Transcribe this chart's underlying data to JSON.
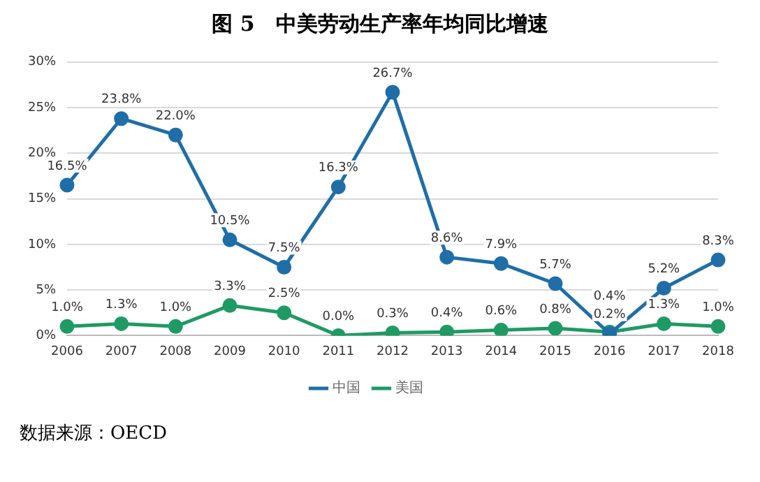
{
  "chart_data": {
    "type": "line",
    "title": "图 5　中美劳动生产率年均同比增速",
    "categories": [
      "2006",
      "2007",
      "2008",
      "2009",
      "2010",
      "2011",
      "2012",
      "2013",
      "2014",
      "2015",
      "2016",
      "2017",
      "2018"
    ],
    "series": [
      {
        "name": "中国",
        "color": "#1f6ea8",
        "values": [
          16.5,
          23.8,
          22.0,
          10.5,
          7.5,
          16.3,
          26.7,
          8.6,
          7.9,
          5.7,
          0.2,
          5.2,
          8.3
        ],
        "value_labels": [
          "16.5%",
          "23.8%",
          "22.0%",
          "10.5%",
          "7.5%",
          "16.3%",
          "26.7%",
          "8.6%",
          "7.9%",
          "5.7%",
          "0.2%",
          "5.2%",
          "8.3%"
        ]
      },
      {
        "name": "美国",
        "color": "#1f9a64",
        "values": [
          1.0,
          1.3,
          1.0,
          3.3,
          2.5,
          0.0,
          0.3,
          0.4,
          0.6,
          0.8,
          0.4,
          1.3,
          1.0
        ],
        "value_labels": [
          "1.0%",
          "1.3%",
          "1.0%",
          "3.3%",
          "2.5%",
          "0.0%",
          "0.3%",
          "0.4%",
          "0.6%",
          "0.8%",
          "0.4%",
          "1.3%",
          "1.0%"
        ]
      }
    ],
    "ylim": [
      0,
      30
    ],
    "yticks": [
      {
        "value": 0,
        "label": "0%"
      },
      {
        "value": 5,
        "label": "5%"
      },
      {
        "value": 10,
        "label": "10%"
      },
      {
        "value": 15,
        "label": "15%"
      },
      {
        "value": 20,
        "label": "20%"
      },
      {
        "value": 25,
        "label": "25%"
      },
      {
        "value": 30,
        "label": "30%"
      }
    ],
    "grid": "y",
    "legend": "bottom",
    "marker": "circle",
    "line_style": "solid",
    "annotations": [
      "数据来源：OECD"
    ]
  }
}
